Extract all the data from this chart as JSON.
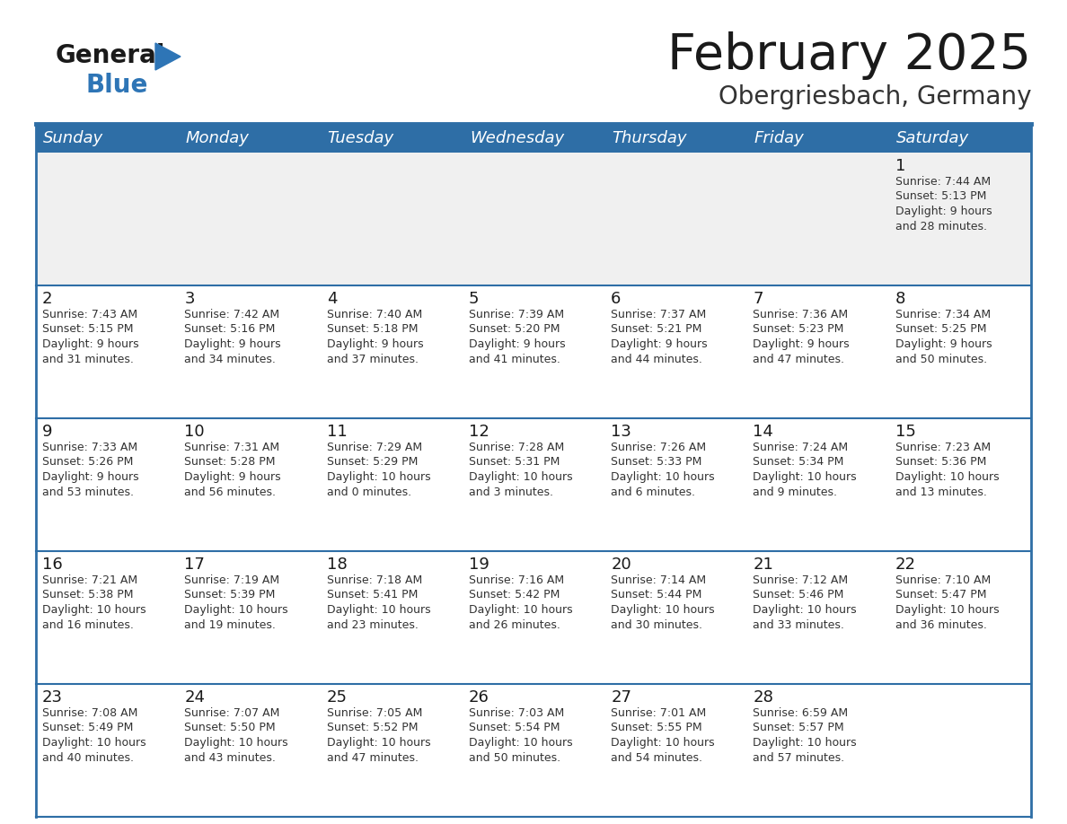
{
  "title": "February 2025",
  "subtitle": "Obergriesbach, Germany",
  "header_bg": "#2E6EA6",
  "header_text_color": "#FFFFFF",
  "cell_bg_gray": "#F0F0F0",
  "cell_bg_white": "#FFFFFF",
  "separator_color": "#2E6EA6",
  "day_headers": [
    "Sunday",
    "Monday",
    "Tuesday",
    "Wednesday",
    "Thursday",
    "Friday",
    "Saturday"
  ],
  "title_color": "#1A1A1A",
  "subtitle_color": "#333333",
  "day_number_color": "#1A1A1A",
  "cell_text_color": "#333333",
  "logo_text_color": "#1A1A1A",
  "logo_blue_color": "#2E75B6",
  "calendar_data": [
    [
      {
        "day": "",
        "info": ""
      },
      {
        "day": "",
        "info": ""
      },
      {
        "day": "",
        "info": ""
      },
      {
        "day": "",
        "info": ""
      },
      {
        "day": "",
        "info": ""
      },
      {
        "day": "",
        "info": ""
      },
      {
        "day": "1",
        "info": "Sunrise: 7:44 AM\nSunset: 5:13 PM\nDaylight: 9 hours\nand 28 minutes."
      }
    ],
    [
      {
        "day": "2",
        "info": "Sunrise: 7:43 AM\nSunset: 5:15 PM\nDaylight: 9 hours\nand 31 minutes."
      },
      {
        "day": "3",
        "info": "Sunrise: 7:42 AM\nSunset: 5:16 PM\nDaylight: 9 hours\nand 34 minutes."
      },
      {
        "day": "4",
        "info": "Sunrise: 7:40 AM\nSunset: 5:18 PM\nDaylight: 9 hours\nand 37 minutes."
      },
      {
        "day": "5",
        "info": "Sunrise: 7:39 AM\nSunset: 5:20 PM\nDaylight: 9 hours\nand 41 minutes."
      },
      {
        "day": "6",
        "info": "Sunrise: 7:37 AM\nSunset: 5:21 PM\nDaylight: 9 hours\nand 44 minutes."
      },
      {
        "day": "7",
        "info": "Sunrise: 7:36 AM\nSunset: 5:23 PM\nDaylight: 9 hours\nand 47 minutes."
      },
      {
        "day": "8",
        "info": "Sunrise: 7:34 AM\nSunset: 5:25 PM\nDaylight: 9 hours\nand 50 minutes."
      }
    ],
    [
      {
        "day": "9",
        "info": "Sunrise: 7:33 AM\nSunset: 5:26 PM\nDaylight: 9 hours\nand 53 minutes."
      },
      {
        "day": "10",
        "info": "Sunrise: 7:31 AM\nSunset: 5:28 PM\nDaylight: 9 hours\nand 56 minutes."
      },
      {
        "day": "11",
        "info": "Sunrise: 7:29 AM\nSunset: 5:29 PM\nDaylight: 10 hours\nand 0 minutes."
      },
      {
        "day": "12",
        "info": "Sunrise: 7:28 AM\nSunset: 5:31 PM\nDaylight: 10 hours\nand 3 minutes."
      },
      {
        "day": "13",
        "info": "Sunrise: 7:26 AM\nSunset: 5:33 PM\nDaylight: 10 hours\nand 6 minutes."
      },
      {
        "day": "14",
        "info": "Sunrise: 7:24 AM\nSunset: 5:34 PM\nDaylight: 10 hours\nand 9 minutes."
      },
      {
        "day": "15",
        "info": "Sunrise: 7:23 AM\nSunset: 5:36 PM\nDaylight: 10 hours\nand 13 minutes."
      }
    ],
    [
      {
        "day": "16",
        "info": "Sunrise: 7:21 AM\nSunset: 5:38 PM\nDaylight: 10 hours\nand 16 minutes."
      },
      {
        "day": "17",
        "info": "Sunrise: 7:19 AM\nSunset: 5:39 PM\nDaylight: 10 hours\nand 19 minutes."
      },
      {
        "day": "18",
        "info": "Sunrise: 7:18 AM\nSunset: 5:41 PM\nDaylight: 10 hours\nand 23 minutes."
      },
      {
        "day": "19",
        "info": "Sunrise: 7:16 AM\nSunset: 5:42 PM\nDaylight: 10 hours\nand 26 minutes."
      },
      {
        "day": "20",
        "info": "Sunrise: 7:14 AM\nSunset: 5:44 PM\nDaylight: 10 hours\nand 30 minutes."
      },
      {
        "day": "21",
        "info": "Sunrise: 7:12 AM\nSunset: 5:46 PM\nDaylight: 10 hours\nand 33 minutes."
      },
      {
        "day": "22",
        "info": "Sunrise: 7:10 AM\nSunset: 5:47 PM\nDaylight: 10 hours\nand 36 minutes."
      }
    ],
    [
      {
        "day": "23",
        "info": "Sunrise: 7:08 AM\nSunset: 5:49 PM\nDaylight: 10 hours\nand 40 minutes."
      },
      {
        "day": "24",
        "info": "Sunrise: 7:07 AM\nSunset: 5:50 PM\nDaylight: 10 hours\nand 43 minutes."
      },
      {
        "day": "25",
        "info": "Sunrise: 7:05 AM\nSunset: 5:52 PM\nDaylight: 10 hours\nand 47 minutes."
      },
      {
        "day": "26",
        "info": "Sunrise: 7:03 AM\nSunset: 5:54 PM\nDaylight: 10 hours\nand 50 minutes."
      },
      {
        "day": "27",
        "info": "Sunrise: 7:01 AM\nSunset: 5:55 PM\nDaylight: 10 hours\nand 54 minutes."
      },
      {
        "day": "28",
        "info": "Sunrise: 6:59 AM\nSunset: 5:57 PM\nDaylight: 10 hours\nand 57 minutes."
      },
      {
        "day": "",
        "info": ""
      }
    ]
  ]
}
